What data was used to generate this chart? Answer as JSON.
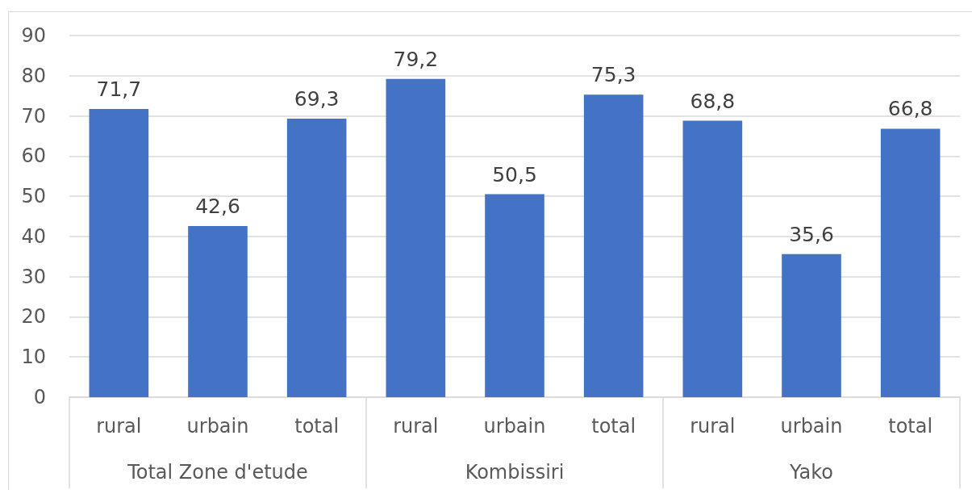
{
  "chart_data": {
    "type": "bar",
    "categories": [
      "rural",
      "urbain",
      "total",
      "rural",
      "urbain",
      "total",
      "rural",
      "urbain",
      "total"
    ],
    "values": [
      71.7,
      42.6,
      69.3,
      79.2,
      50.5,
      75.3,
      68.8,
      35.6,
      66.8
    ],
    "value_labels": [
      "71,7",
      "42,6",
      "69,3",
      "79,2",
      "50,5",
      "75,3",
      "68,8",
      "35,6",
      "66,8"
    ],
    "color": "#4472c4",
    "ylim": [
      0,
      90
    ],
    "yticks": [
      0,
      10,
      20,
      30,
      40,
      50,
      60,
      70,
      80,
      90
    ],
    "grid": "y",
    "annotations": [
      "Total Zone d'etude",
      "Kombissiri",
      "Yako"
    ]
  }
}
